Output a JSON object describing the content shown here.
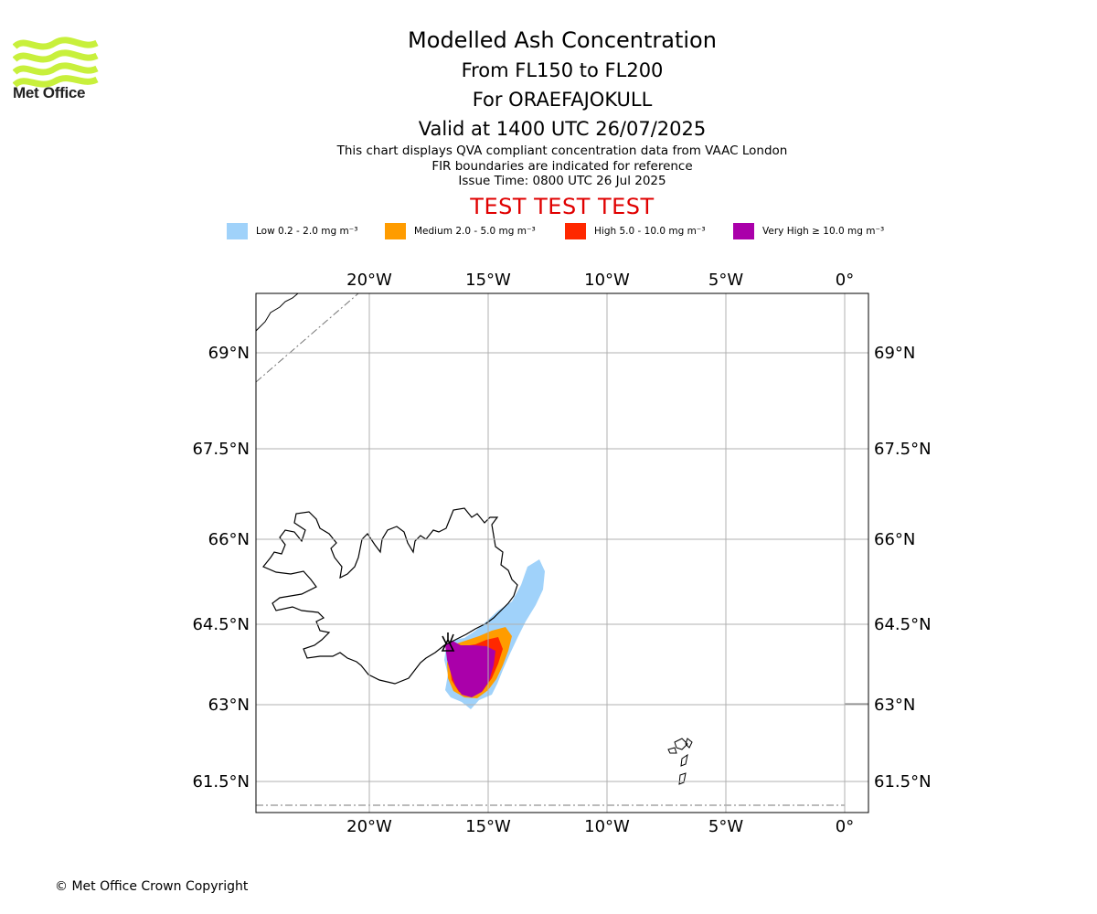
{
  "header": {
    "title": "Modelled Ash Concentration",
    "levels": "From FL150 to FL200",
    "volcano": "For ORAEFAJOKULL",
    "valid_time": "Valid at 1400 UTC 26/07/2025"
  },
  "logo": {
    "text": "Met Office",
    "color": "#c8f03c"
  },
  "notes": {
    "line1": "This chart displays QVA compliant concentration data from VAAC London",
    "line2": "FIR boundaries are indicated for reference",
    "issue_time": "Issue Time: 0800 UTC 26 Jul 2025"
  },
  "test_banner": "TEST TEST TEST",
  "legend": [
    {
      "label": "Low 0.2 - 2.0 mg m⁻³",
      "color": "#a0d2fa"
    },
    {
      "label": "Medium 2.0 - 5.0 mg m⁻³",
      "color": "#ff9c00"
    },
    {
      "label": "High 5.0 - 10.0 mg m⁻³",
      "color": "#ff2800"
    },
    {
      "label": "Very High ≥ 10.0 mg m⁻³",
      "color": "#aa00aa"
    }
  ],
  "map": {
    "lon_ticks": [
      "20°W",
      "15°W",
      "10°W",
      "5°W",
      "0°"
    ],
    "lat_ticks": [
      "69°N",
      "67.5°N",
      "66°N",
      "64.5°N",
      "63°N",
      "61.5°N"
    ]
  },
  "copyright": "© Met Office Crown Copyright"
}
